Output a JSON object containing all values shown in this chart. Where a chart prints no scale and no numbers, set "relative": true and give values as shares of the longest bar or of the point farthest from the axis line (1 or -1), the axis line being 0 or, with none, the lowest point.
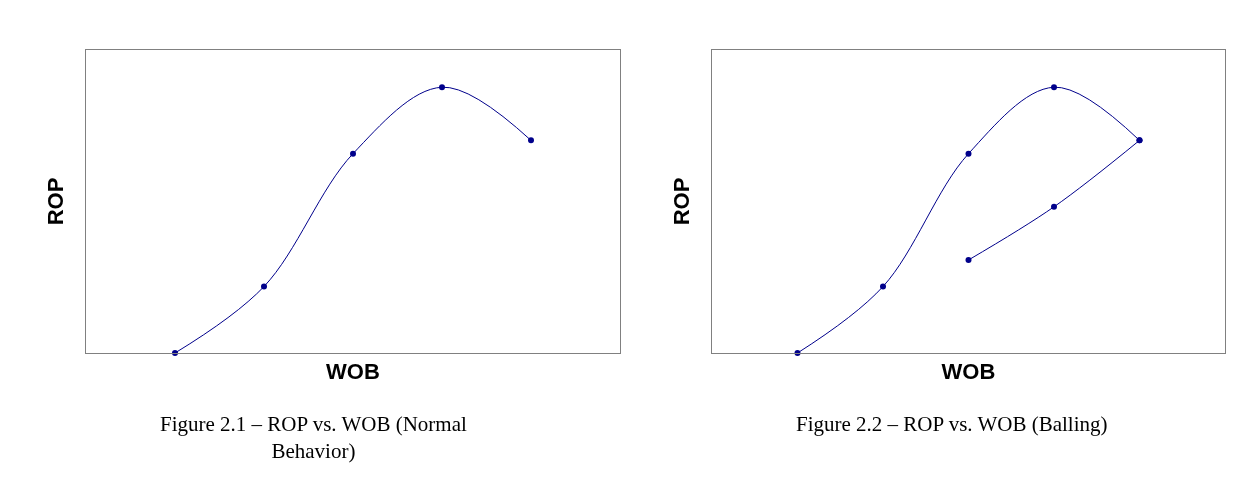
{
  "chart_data": [
    {
      "type": "line",
      "title": "Figure 2.1 – ROP vs. WOB (Normal Behavior)",
      "xlabel": "WOB",
      "ylabel": "ROP",
      "relative": true,
      "categories": [
        null,
        null,
        null,
        null,
        null
      ],
      "series": [
        {
          "color": "#00008b",
          "values": [
            0,
            0.25,
            0.75,
            1,
            0.8
          ]
        }
      ],
      "tick_labels": false,
      "marker": "circle",
      "line_style": "solid"
    },
    {
      "type": "line",
      "title": "Figure 2.2 – ROP vs. WOB (Balling)",
      "xlabel": "WOB",
      "ylabel": "ROP",
      "relative": true,
      "categories": [
        null,
        null,
        null,
        null,
        null
      ],
      "series": [
        {
          "color": "#00008b",
          "values": [
            0,
            0.25,
            0.75,
            1,
            0.8
          ]
        },
        {
          "color": "#00008b",
          "values": [
            null,
            null,
            0.35,
            0.55,
            0.8
          ]
        }
      ],
      "tick_labels": false,
      "marker": "circle",
      "line_style": "solid"
    }
  ]
}
